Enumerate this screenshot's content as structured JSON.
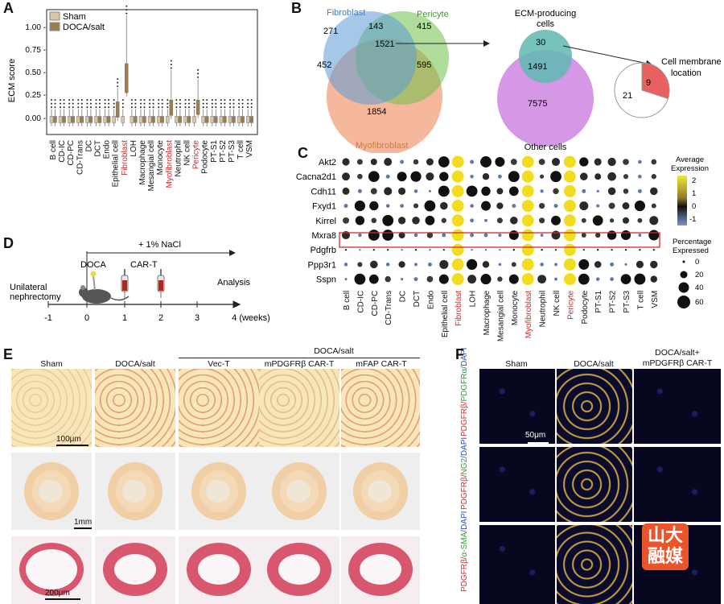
{
  "panelA": {
    "letter": "A",
    "ylabel": "ECM score",
    "yticks": [
      "1.00 -",
      "0.75 -",
      "0.50 -",
      "0.25 -",
      "0.00 -"
    ],
    "legend": [
      {
        "label": "Sham",
        "color": "#d9c6a5"
      },
      {
        "label": "DOCA/salt",
        "color": "#9e7d4a"
      }
    ]
  },
  "panelB": {
    "letter": "B",
    "fibroblast": "Fibroblast",
    "pericyte": "Pericyte",
    "myofibroblast": "Myofibroblast",
    "ecm_title_1": "ECM-producing",
    "ecm_title_2": "cells",
    "other_cells": "Other cells",
    "membrane_1": "Cell membrane",
    "membrane_2": "location",
    "nums": {
      "n271": "271",
      "n143": "143",
      "n415": "415",
      "n1521": "1521",
      "n452": "452",
      "n595": "595",
      "n1854": "1854",
      "n30": "30",
      "n1491": "1491",
      "n7575": "7575",
      "n9": "9",
      "n21": "21"
    }
  },
  "panelC": {
    "letter": "C",
    "genes": [
      "Akt2",
      "Cacna2d1",
      "Cdh11",
      "Fxyd1",
      "Kirrel",
      "Mxra8",
      "Pdgfrb",
      "Ppp3r1",
      "Sspn"
    ],
    "cell_types": [
      "B cell",
      "CD-IC",
      "CD-PC",
      "CD-Trans",
      "DC",
      "DCT",
      "Endo",
      "Epithelial cell",
      "Fibroblast",
      "LOH",
      "Macrophage",
      "Mesangial cell",
      "Monocyte",
      "Myofibroblast",
      "Neutrophil",
      "NK cell",
      "Pericyte",
      "Podocyte",
      "PT-S1",
      "PT-S2",
      "PT-S3",
      "T cell",
      "VSM"
    ],
    "highlighted": [
      "Fibroblast",
      "Myofibroblast",
      "Pericyte"
    ],
    "avg_title_1": "Average",
    "avg_title_2": "Expression",
    "avg_ticks": [
      "2",
      "1",
      "0",
      "-1"
    ],
    "pct_title_1": "Percentage",
    "pct_title_2": "Expressed",
    "pct_ticks": [
      "0",
      "20",
      "40",
      "60"
    ]
  },
  "panelD": {
    "letter": "D",
    "nacl": "+ 1% NaCl",
    "doca": "DOCA",
    "cart": "CAR-T",
    "analysis": "Analysis",
    "unilateral_1": "Unilateral",
    "unilateral_2": "nephrectomy",
    "ticks": [
      "-1",
      "0",
      "1",
      "2",
      "3",
      "4 (weeks)"
    ]
  },
  "panelE": {
    "letter": "E",
    "group": "DOCA/salt",
    "cols": [
      "Sham",
      "DOCA/salt",
      "Vec-T",
      "mPDGFRβ CAR-T",
      "mFAP CAR-T"
    ],
    "scales": [
      "100μm",
      "1mm",
      "200μm"
    ]
  },
  "panelF": {
    "letter": "F",
    "cols": [
      "Sham",
      "DOCA/salt",
      "DOCA/salt+",
      "mPDGFRβ CAR-T"
    ],
    "scale": "50μm",
    "rows": [
      {
        "red": "PDGFRβ/",
        "green": "PDGFRα",
        "blue": "/DAPI"
      },
      {
        "red": "PDGFRβ/",
        "green": "NG2",
        "blue": "/DAPI"
      },
      {
        "red": "PDGFRβ/",
        "green": "α-SMA",
        "blue": "/DAPI"
      }
    ],
    "watermark_1": "山大",
    "watermark_2": "融媒"
  },
  "colors": {
    "highlight": "#d22b2b",
    "fibro": "#5b9bd5",
    "pericyte": "#6fbf4a",
    "myo": "#f2a07b",
    "other": "#c97ee0"
  }
}
